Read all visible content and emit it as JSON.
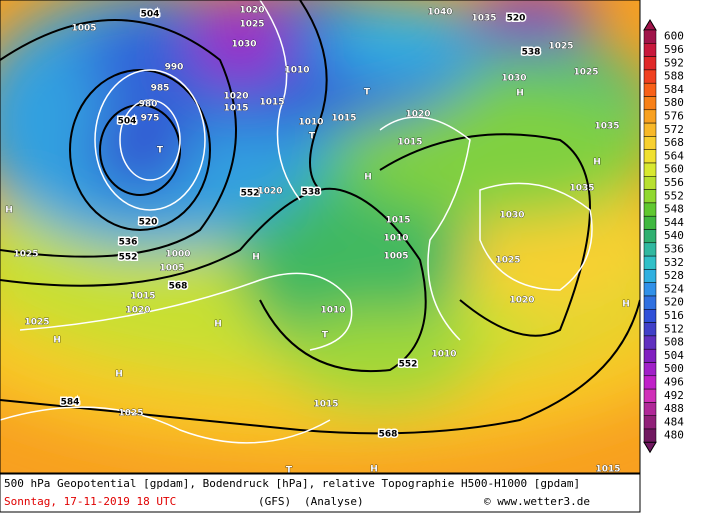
{
  "map_labels": [
    "504",
    "1005",
    "1020",
    "1025",
    "1030",
    "990",
    "985",
    "980",
    "504",
    "975",
    "T",
    "1010",
    "1020",
    "1015",
    "1015",
    "T",
    "1010",
    "T",
    "1015",
    "1020",
    "1015",
    "H",
    "1035",
    "H",
    "1035",
    "552",
    "1020",
    "538",
    "H",
    "H",
    "520",
    "536",
    "552",
    "1025",
    "H",
    "568",
    "1015",
    "1020",
    "1030",
    "1025",
    "1020",
    "H",
    "1010",
    "T",
    "552",
    "1010",
    "1025",
    "H",
    "H",
    "H",
    "584",
    "1025",
    "1015",
    "568",
    "T",
    "H",
    "1015",
    "1040",
    "1035",
    "520",
    "538",
    "1025",
    "1025",
    "1030",
    "1015",
    "1010",
    "1005",
    "1000",
    "1005"
  ],
  "colorbar": {
    "levels": [
      600,
      596,
      592,
      588,
      584,
      580,
      576,
      572,
      568,
      564,
      560,
      556,
      552,
      548,
      544,
      540,
      536,
      532,
      528,
      524,
      520,
      516,
      512,
      508,
      504,
      500,
      496,
      492,
      488,
      484,
      480
    ],
    "colors": [
      "#a0144a",
      "#c8183c",
      "#e02828",
      "#f04020",
      "#f86018",
      "#f88018",
      "#f8a020",
      "#f8b828",
      "#f8d030",
      "#f0e030",
      "#d8e830",
      "#b8e030",
      "#90d830",
      "#60c830",
      "#40b840",
      "#30b070",
      "#30b8a0",
      "#30c0c8",
      "#30b0e0",
      "#3090e8",
      "#3070e0",
      "#3050d8",
      "#4040c8",
      "#6030c0",
      "#8020c0",
      "#a020c8",
      "#c020c8",
      "#d030b8",
      "#b02898",
      "#902078",
      "#701860"
    ]
  },
  "footer": {
    "line1": "500 hPa Geopotential [gpdam], Bodendruck [hPa], relative Topographie H500-H1000 [gpdam]",
    "date": "Sonntag, 17-11-2019  18 UTC",
    "model": "(GFS)",
    "run": "(Analyse)",
    "credit": "© www.wetter3.de"
  }
}
